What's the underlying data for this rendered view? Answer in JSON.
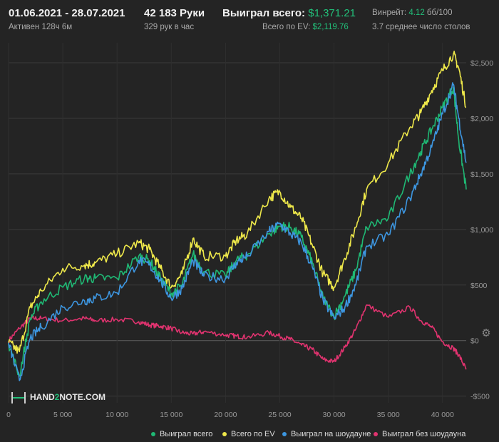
{
  "header": {
    "date_range": "01.06.2021 - 28.07.2021",
    "active": "Активен 128ч 6м",
    "hands": "42 183 Руки",
    "hands_per_hour": "329 рук в час",
    "won_total_label": "Выиграл всего:",
    "won_total_value": "$1,371.21",
    "ev_total_label": "Всего по EV:",
    "ev_total_value": "$2,119.76",
    "winrate_label": "Винрейт:",
    "winrate_value": "4.12",
    "winrate_unit": "бб/100",
    "tables_avg": "3.7 среднее число столов"
  },
  "logo": {
    "text_a": "HAND",
    "text_b": "2",
    "text_c": "NOTE.COM"
  },
  "colors": {
    "won_total": "#1fb874",
    "ev": "#eee84a",
    "showdown": "#3d96e0",
    "nonshowdown": "#e0336f",
    "accent_green": "#22c07a"
  },
  "chart_data": {
    "type": "line",
    "xlim": [
      0,
      42183
    ],
    "ylim": [
      -560,
      2680
    ],
    "x_ticks": [
      0,
      5000,
      10000,
      15000,
      20000,
      25000,
      30000,
      35000,
      40000
    ],
    "x_tick_labels": [
      "0",
      "5 000",
      "10 000",
      "15 000",
      "20 000",
      "25 000",
      "30 000",
      "35 000",
      "40 000"
    ],
    "y_ticks": [
      -500,
      0,
      500,
      1000,
      1500,
      2000,
      2500
    ],
    "y_tick_labels": [
      "-$500",
      "$0",
      "$500",
      "$1,000",
      "$1,500",
      "$2,000",
      "$2,500"
    ],
    "x": [
      0,
      1000,
      2000,
      3000,
      5000,
      7000,
      8000,
      10000,
      12000,
      13000,
      14000,
      15000,
      16000,
      17000,
      18000,
      20000,
      21000,
      22000,
      24000,
      25000,
      26000,
      27000,
      28000,
      29000,
      30000,
      31000,
      32000,
      33000,
      35000,
      37000,
      38000,
      39000,
      40000,
      41000,
      41500,
      42183
    ],
    "series": [
      {
        "name": "Выиграл всего",
        "color_key": "won_total",
        "values": [
          -30,
          -320,
          200,
          350,
          480,
          560,
          560,
          560,
          760,
          720,
          560,
          420,
          500,
          780,
          620,
          580,
          720,
          770,
          960,
          1030,
          1020,
          930,
          700,
          380,
          220,
          400,
          630,
          1020,
          1100,
          1500,
          1700,
          1900,
          2100,
          2280,
          1800,
          1360
        ]
      },
      {
        "name": "Всего по EV",
        "color_key": "ev",
        "values": [
          -20,
          -100,
          300,
          450,
          650,
          680,
          700,
          780,
          880,
          820,
          650,
          480,
          600,
          920,
          760,
          760,
          900,
          960,
          1280,
          1340,
          1200,
          1100,
          860,
          600,
          480,
          740,
          1020,
          1360,
          1600,
          1920,
          2050,
          2250,
          2430,
          2580,
          2450,
          2100
        ]
      },
      {
        "name": "Выиграл на шоудауне",
        "color_key": "showdown",
        "values": [
          -20,
          -360,
          20,
          120,
          300,
          360,
          380,
          430,
          720,
          680,
          540,
          380,
          470,
          720,
          580,
          560,
          700,
          760,
          980,
          1050,
          960,
          880,
          660,
          360,
          200,
          300,
          500,
          850,
          950,
          1280,
          1500,
          1740,
          2040,
          2300,
          2000,
          1600
        ]
      },
      {
        "name": "Выиграл без шоудауна",
        "color_key": "nonshowdown",
        "values": [
          0,
          110,
          200,
          200,
          180,
          200,
          180,
          190,
          170,
          140,
          130,
          110,
          70,
          60,
          80,
          50,
          40,
          30,
          70,
          40,
          10,
          -40,
          -80,
          -170,
          -190,
          -60,
          100,
          320,
          210,
          300,
          180,
          120,
          -10,
          -70,
          -130,
          -260
        ]
      }
    ]
  }
}
